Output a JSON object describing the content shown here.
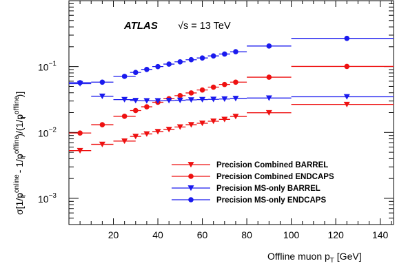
{
  "chart_data": {
    "type": "scatter",
    "title": "",
    "annotation": {
      "experiment": "ATLAS",
      "energy": "√s = 13 TeV"
    },
    "xlabel": {
      "main": "Offline muon p",
      "sub": "T",
      "unit": " [GeV]"
    },
    "ylabel": {
      "parts": [
        "σ[1/p",
        "online",
        "T",
        " - 1/p",
        "offline",
        "T",
        ")/(1/p",
        "offline",
        "T",
        ")]"
      ]
    },
    "xlim": [
      0,
      146
    ],
    "ylim": [
      0.0004,
      1
    ],
    "yscale": "log",
    "x_ticks": [
      20,
      40,
      60,
      80,
      100,
      120,
      140
    ],
    "x_tick_labels": [
      "20",
      "40",
      "60",
      "80",
      "100",
      "120",
      "140"
    ],
    "y_ticks": [
      0.001,
      0.01,
      0.1
    ],
    "y_tick_labels": [
      {
        "base": "10",
        "exp": "−3"
      },
      {
        "base": "10",
        "exp": "−2"
      },
      {
        "base": "10",
        "exp": "−1"
      }
    ],
    "legend_position": "lower-right",
    "series": [
      {
        "name": "Precision Combined BARREL",
        "color": "#ee1111",
        "marker": "triangle-down",
        "x": [
          5,
          15,
          25,
          30,
          35,
          40,
          45,
          50,
          55,
          60,
          65,
          70,
          75,
          90,
          125
        ],
        "xerr": [
          [
            0,
            10
          ],
          [
            10,
            20
          ],
          [
            20,
            30
          ],
          [
            27.5,
            32.5
          ],
          [
            32.5,
            37.5
          ],
          [
            37.5,
            42.5
          ],
          [
            42.5,
            47.5
          ],
          [
            47.5,
            52.5
          ],
          [
            52.5,
            57.5
          ],
          [
            57.5,
            62.5
          ],
          [
            62.5,
            67.5
          ],
          [
            67.5,
            72.5
          ],
          [
            72.5,
            80
          ],
          [
            80,
            100
          ],
          [
            100,
            146
          ]
        ],
        "y": [
          0.0053,
          0.0066,
          0.0074,
          0.0087,
          0.0095,
          0.0103,
          0.0111,
          0.0121,
          0.0131,
          0.0138,
          0.0148,
          0.0158,
          0.0175,
          0.0199,
          0.0266
        ]
      },
      {
        "name": "Precision Combined ENDCAPS",
        "color": "#ee1111",
        "marker": "circle",
        "x": [
          5,
          15,
          25,
          30,
          35,
          40,
          45,
          50,
          55,
          60,
          65,
          70,
          75,
          90,
          125
        ],
        "xerr": [
          [
            0,
            10
          ],
          [
            10,
            20
          ],
          [
            20,
            30
          ],
          [
            27.5,
            32.5
          ],
          [
            32.5,
            37.5
          ],
          [
            37.5,
            42.5
          ],
          [
            42.5,
            47.5
          ],
          [
            47.5,
            52.5
          ],
          [
            52.5,
            57.5
          ],
          [
            57.5,
            62.5
          ],
          [
            62.5,
            67.5
          ],
          [
            67.5,
            72.5
          ],
          [
            72.5,
            80
          ],
          [
            80,
            100
          ],
          [
            100,
            146
          ]
        ],
        "y": [
          0.0098,
          0.0131,
          0.0176,
          0.0215,
          0.0245,
          0.0287,
          0.0325,
          0.0362,
          0.0398,
          0.0441,
          0.0487,
          0.0535,
          0.058,
          0.069,
          0.1005
        ]
      },
      {
        "name": "Precision MS-only BARREL",
        "color": "#1a1aee",
        "marker": "triangle-down",
        "x": [
          5,
          15,
          25,
          30,
          35,
          40,
          45,
          50,
          55,
          60,
          65,
          70,
          75,
          90,
          125
        ],
        "xerr": [
          [
            0,
            10
          ],
          [
            10,
            20
          ],
          [
            20,
            30
          ],
          [
            27.5,
            32.5
          ],
          [
            32.5,
            37.5
          ],
          [
            37.5,
            42.5
          ],
          [
            42.5,
            47.5
          ],
          [
            47.5,
            52.5
          ],
          [
            52.5,
            57.5
          ],
          [
            57.5,
            62.5
          ],
          [
            62.5,
            67.5
          ],
          [
            67.5,
            72.5
          ],
          [
            72.5,
            80
          ],
          [
            80,
            100
          ],
          [
            100,
            146
          ]
        ],
        "y": [
          0.055,
          0.0355,
          0.0315,
          0.0305,
          0.0302,
          0.0302,
          0.0305,
          0.0308,
          0.0312,
          0.0315,
          0.0318,
          0.0322,
          0.0328,
          0.0333,
          0.0348
        ]
      },
      {
        "name": "Precision MS-only ENDCAPS",
        "color": "#1a1aee",
        "marker": "circle",
        "x": [
          5,
          15,
          25,
          30,
          35,
          40,
          45,
          50,
          55,
          60,
          65,
          70,
          75,
          90,
          125
        ],
        "xerr": [
          [
            0,
            10
          ],
          [
            10,
            20
          ],
          [
            20,
            30
          ],
          [
            27.5,
            32.5
          ],
          [
            32.5,
            37.5
          ],
          [
            37.5,
            42.5
          ],
          [
            42.5,
            47.5
          ],
          [
            47.5,
            52.5
          ],
          [
            52.5,
            57.5
          ],
          [
            57.5,
            62.5
          ],
          [
            62.5,
            67.5
          ],
          [
            67.5,
            72.5
          ],
          [
            72.5,
            80
          ],
          [
            80,
            100
          ],
          [
            100,
            146
          ]
        ],
        "y": [
          0.057,
          0.058,
          0.071,
          0.0815,
          0.0905,
          0.1,
          0.109,
          0.118,
          0.127,
          0.135,
          0.145,
          0.155,
          0.168,
          0.205,
          0.268
        ]
      }
    ]
  }
}
